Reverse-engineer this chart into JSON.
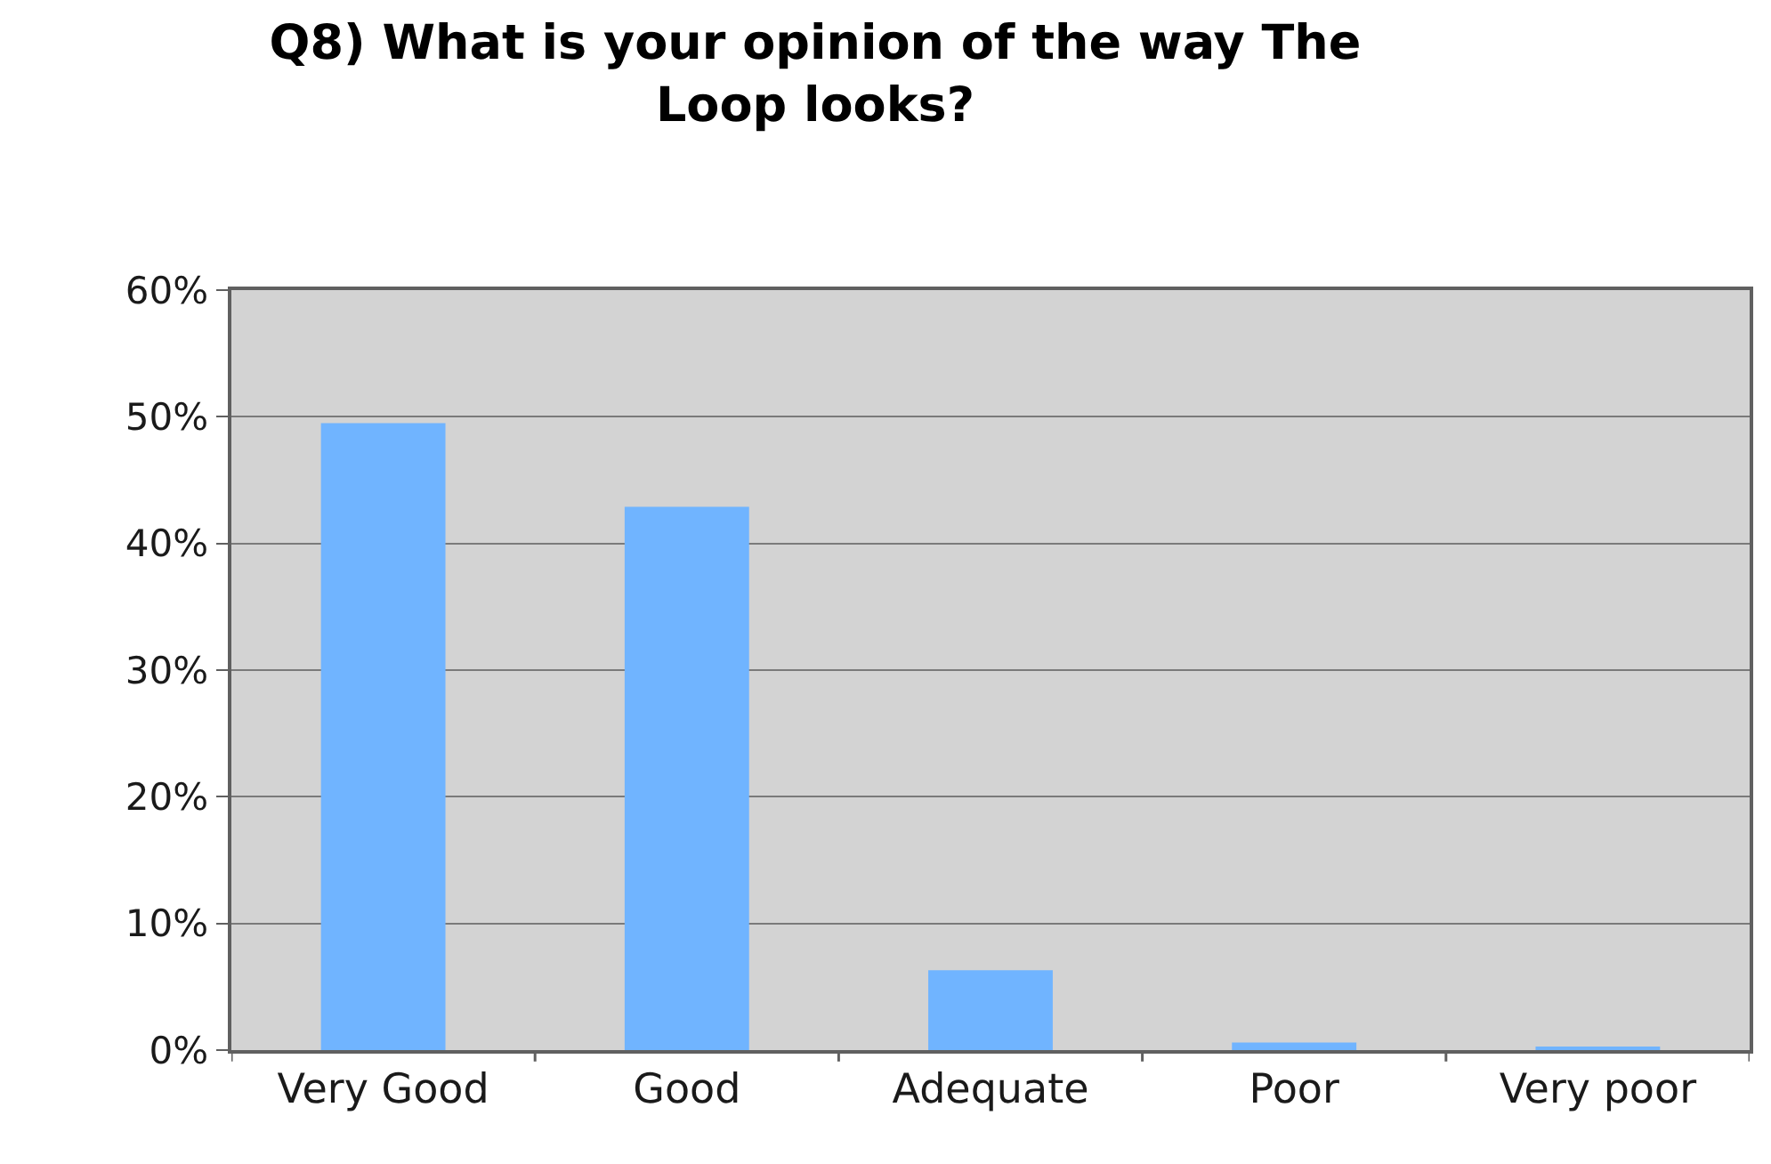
{
  "chart_data": {
    "type": "bar",
    "title": "Q8) What is your opinion of the way The Loop looks?",
    "categories": [
      "Very Good",
      "Good",
      "Adequate",
      "Poor",
      "Very poor"
    ],
    "values": [
      49.5,
      42.9,
      6.3,
      0.6,
      0.2
    ],
    "color": "#70b4ff",
    "ylim": [
      0,
      60
    ],
    "yticks": [
      {
        "value": 0,
        "label": "0%"
      },
      {
        "value": 10,
        "label": "10%"
      },
      {
        "value": 20,
        "label": "20%"
      },
      {
        "value": 30,
        "label": "30%"
      },
      {
        "value": 40,
        "label": "40%"
      },
      {
        "value": 50,
        "label": "50%"
      },
      {
        "value": 60,
        "label": "60%"
      }
    ],
    "grid": "y"
  }
}
